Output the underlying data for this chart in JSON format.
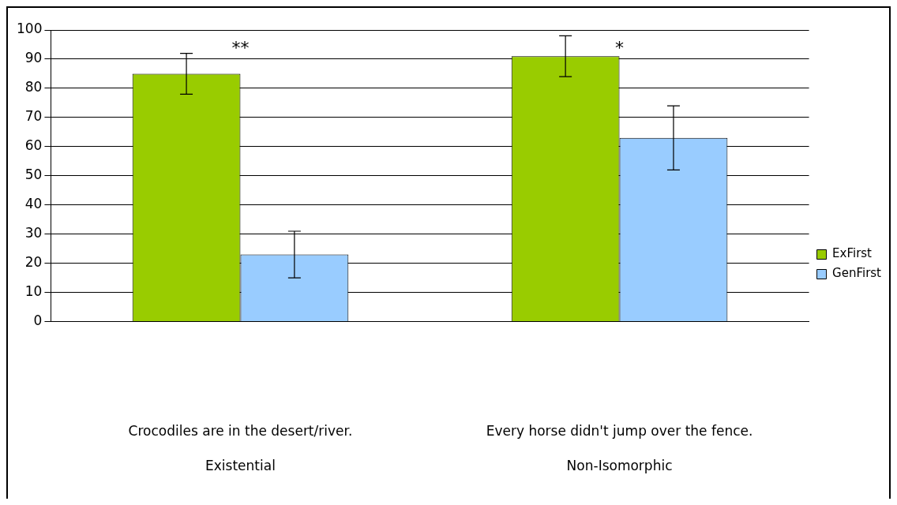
{
  "chart_data": {
    "type": "bar",
    "categories": [
      "Crocodiles are in the desert/river.\nExistential",
      "Every horse didn't jump over the fence.\nNon-Isomorphic"
    ],
    "series": [
      {
        "name": "ExFirst",
        "color": "#99cc00",
        "values": [
          85,
          91
        ],
        "errors": [
          7,
          7
        ]
      },
      {
        "name": "GenFirst",
        "color": "#99ccff",
        "values": [
          23,
          63
        ],
        "errors": [
          8,
          11
        ]
      }
    ],
    "ylim": [
      0,
      100
    ],
    "yticks": [
      0,
      10,
      20,
      30,
      40,
      50,
      60,
      70,
      80,
      90,
      100
    ],
    "grid": "y",
    "legend": "right",
    "annotations": [
      "**",
      "*"
    ]
  }
}
